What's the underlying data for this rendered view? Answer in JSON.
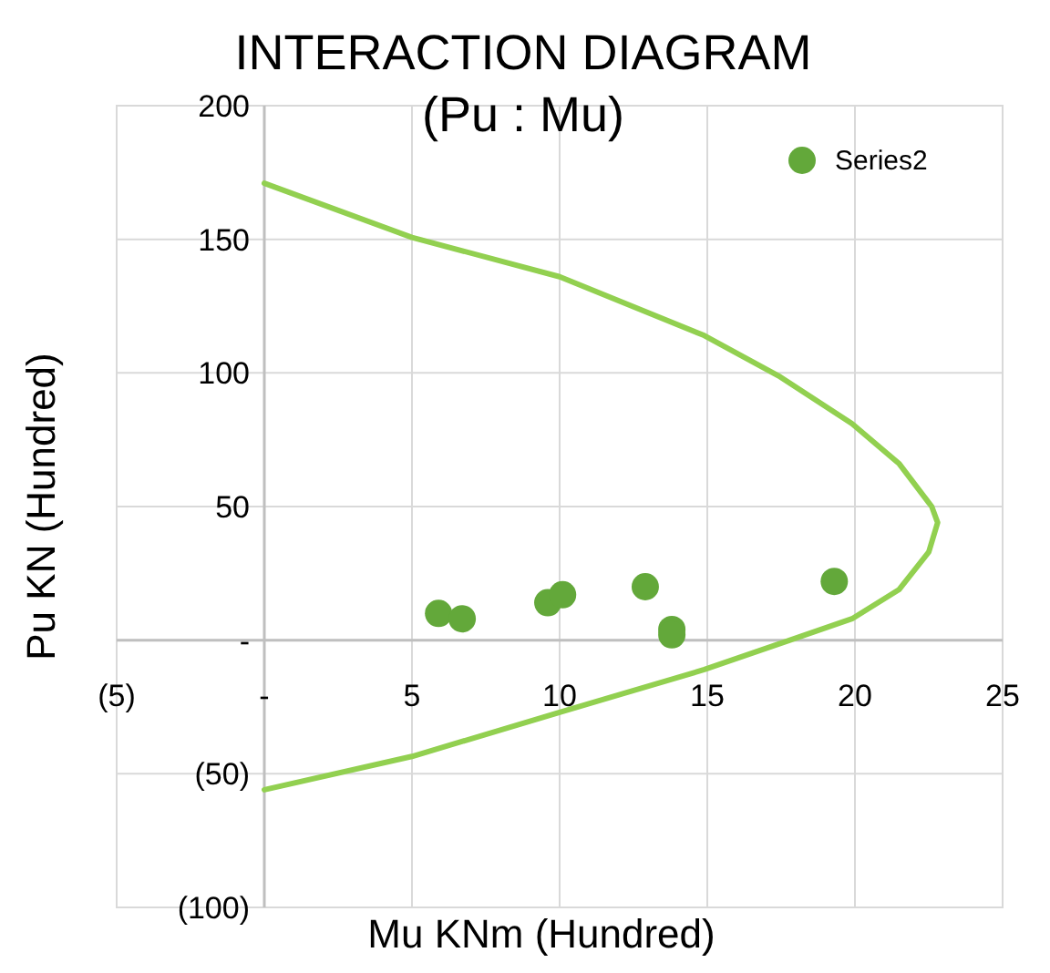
{
  "chart_data": {
    "type": "scatter",
    "title": "INTERACTION DIAGRAM  (Pu : Mu)",
    "xlabel": "Mu  KNm (Hundred)",
    "ylabel": "Pu  KN  (Hundred)",
    "xlim": [
      -5,
      25
    ],
    "xticks": [
      {
        "value": -5,
        "label": "(5)"
      },
      {
        "value": 0,
        "label": "-"
      },
      5,
      10,
      15,
      20,
      25
    ],
    "ylim": [
      -100,
      200
    ],
    "yticks": [
      {
        "value": -100,
        "label": "(100)"
      },
      {
        "value": -50,
        "label": "(50)"
      },
      {
        "value": 0,
        "label": "-"
      },
      50,
      100,
      150,
      200
    ],
    "grid": true,
    "legend": "top right",
    "series": [
      {
        "type": "line",
        "color": "#92d050",
        "marker": "none",
        "line_style": "solid",
        "x": [
          0,
          5,
          10,
          14.9,
          17.4,
          19.9,
          21.5,
          22.6,
          22.8,
          22.5,
          21.5,
          19.9,
          17.8,
          14.9,
          10,
          5,
          0
        ],
        "values": [
          171,
          150.7,
          136,
          114,
          99,
          81,
          66,
          50,
          44,
          33,
          19,
          8,
          0,
          -11,
          -27,
          -43.5,
          -56
        ]
      },
      {
        "name": "Series2",
        "color": "#63a83a",
        "marker": "circle",
        "x": [
          5.9,
          6.7,
          9.6,
          10.1,
          12.9,
          13.8,
          13.8,
          19.3
        ],
        "values": [
          10,
          8,
          14,
          17,
          20,
          4,
          2,
          22
        ]
      }
    ]
  }
}
